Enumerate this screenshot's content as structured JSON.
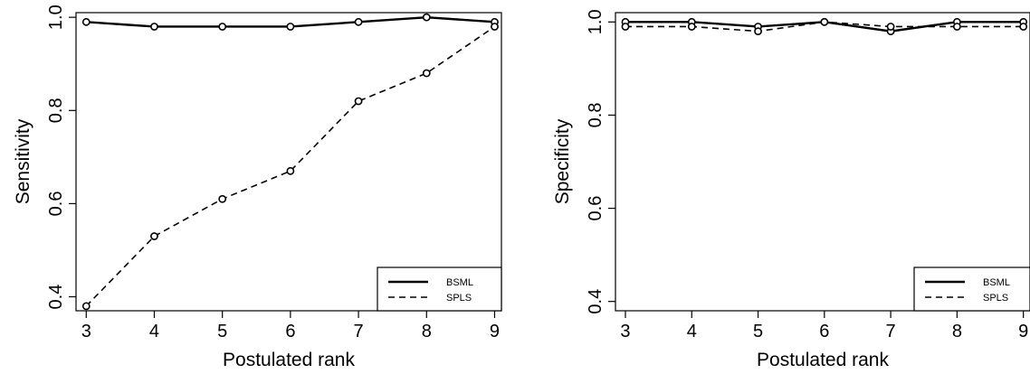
{
  "chart_data": [
    {
      "type": "line",
      "ylabel": "Sensitivity",
      "xlabel": "Postulated rank",
      "x": [
        3,
        4,
        5,
        6,
        7,
        8,
        9
      ],
      "xlim": [
        2.85,
        9.1
      ],
      "ylim": [
        0.37,
        1.01
      ],
      "yticks": [
        0.4,
        0.6,
        0.8,
        1.0
      ],
      "ytick_labels": [
        "0.4",
        "0.6",
        "0.8",
        "1.0"
      ],
      "xtick_labels": [
        "3",
        "4",
        "5",
        "6",
        "7",
        "8",
        "9"
      ],
      "legend_position": "bottom-right",
      "series": [
        {
          "name": "BSML",
          "style": "solid",
          "values": [
            0.99,
            0.98,
            0.98,
            0.98,
            0.99,
            1.0,
            0.99
          ]
        },
        {
          "name": "SPLS",
          "style": "dashed",
          "values": [
            0.38,
            0.53,
            0.61,
            0.67,
            0.82,
            0.88,
            0.98
          ]
        }
      ]
    },
    {
      "type": "line",
      "ylabel": "Specificity",
      "xlabel": "Postulated rank",
      "x": [
        3,
        4,
        5,
        6,
        7,
        8,
        9
      ],
      "xlim": [
        2.85,
        9.1
      ],
      "ylim": [
        0.38,
        1.02
      ],
      "yticks": [
        0.4,
        0.6,
        0.8,
        1.0
      ],
      "ytick_labels": [
        "0.4",
        "0.6",
        "0.8",
        "1.0"
      ],
      "xtick_labels": [
        "3",
        "4",
        "5",
        "6",
        "7",
        "8",
        "9"
      ],
      "legend_position": "bottom-right",
      "series": [
        {
          "name": "BSML",
          "style": "solid",
          "values": [
            1.0,
            1.0,
            0.99,
            1.0,
            0.98,
            1.0,
            1.0
          ]
        },
        {
          "name": "SPLS",
          "style": "dashed",
          "values": [
            0.99,
            0.99,
            0.98,
            1.0,
            0.99,
            0.99,
            0.99
          ]
        }
      ]
    }
  ]
}
